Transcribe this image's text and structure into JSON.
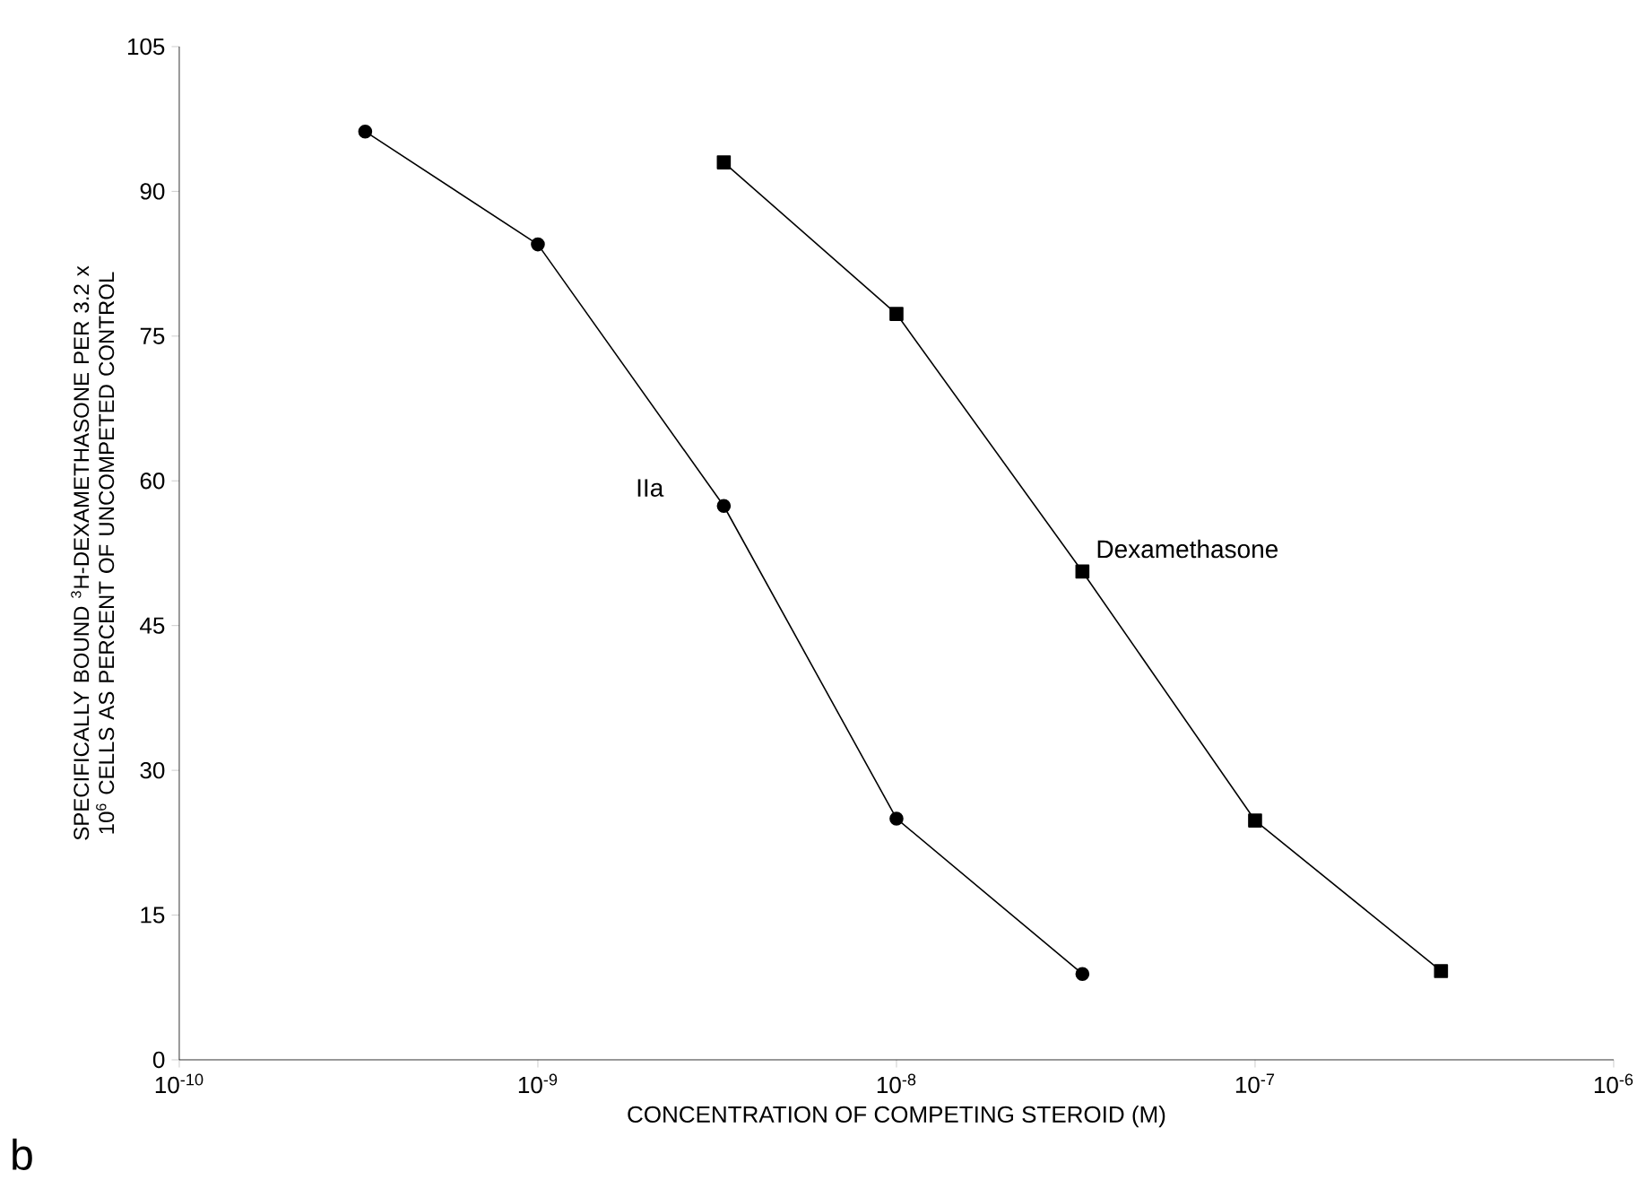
{
  "chart_data": {
    "type": "line",
    "xlabel": "CONCENTRATION OF COMPETING STEROID (M)",
    "ylabel": "SPECIFICALLY BOUND $^{3}$H-DEXAMETHASONE PER 3.2 x 10$^{6}$ CELLS AS PERCENT OF UNCOMPETED CONTROL",
    "log": "x",
    "xlim": [
      1e-10,
      1e-06
    ],
    "ylim": [
      0,
      105
    ],
    "xticks": [
      {
        "value": 1e-10,
        "label": "10$^{-10}$"
      },
      {
        "value": 1e-09,
        "label": "10$^{-9}$"
      },
      {
        "value": 1e-08,
        "label": "10$^{-8}$"
      },
      {
        "value": 1e-07,
        "label": "10$^{-7}$"
      },
      {
        "value": 1e-06,
        "label": "10$^{-6}$"
      }
    ],
    "yticks": [
      0,
      15,
      30,
      45,
      60,
      75,
      90,
      105
    ],
    "grid": false,
    "legend": false,
    "annotations": [
      "b"
    ],
    "series": [
      {
        "name": "IIa",
        "color": "#000000",
        "marker": "circle",
        "x": [
          3.3e-10,
          1e-09,
          3.3e-09,
          1e-08,
          3.3e-08
        ],
        "values": [
          96.2,
          84.5,
          57.4,
          25.0,
          8.9
        ]
      },
      {
        "name": "Dexamethasone",
        "color": "#000000",
        "marker": "square",
        "x": [
          3.3e-09,
          1e-08,
          3.3e-08,
          1e-07,
          3.3e-07
        ],
        "values": [
          93.0,
          77.3,
          50.6,
          24.8,
          9.2
        ]
      }
    ]
  }
}
